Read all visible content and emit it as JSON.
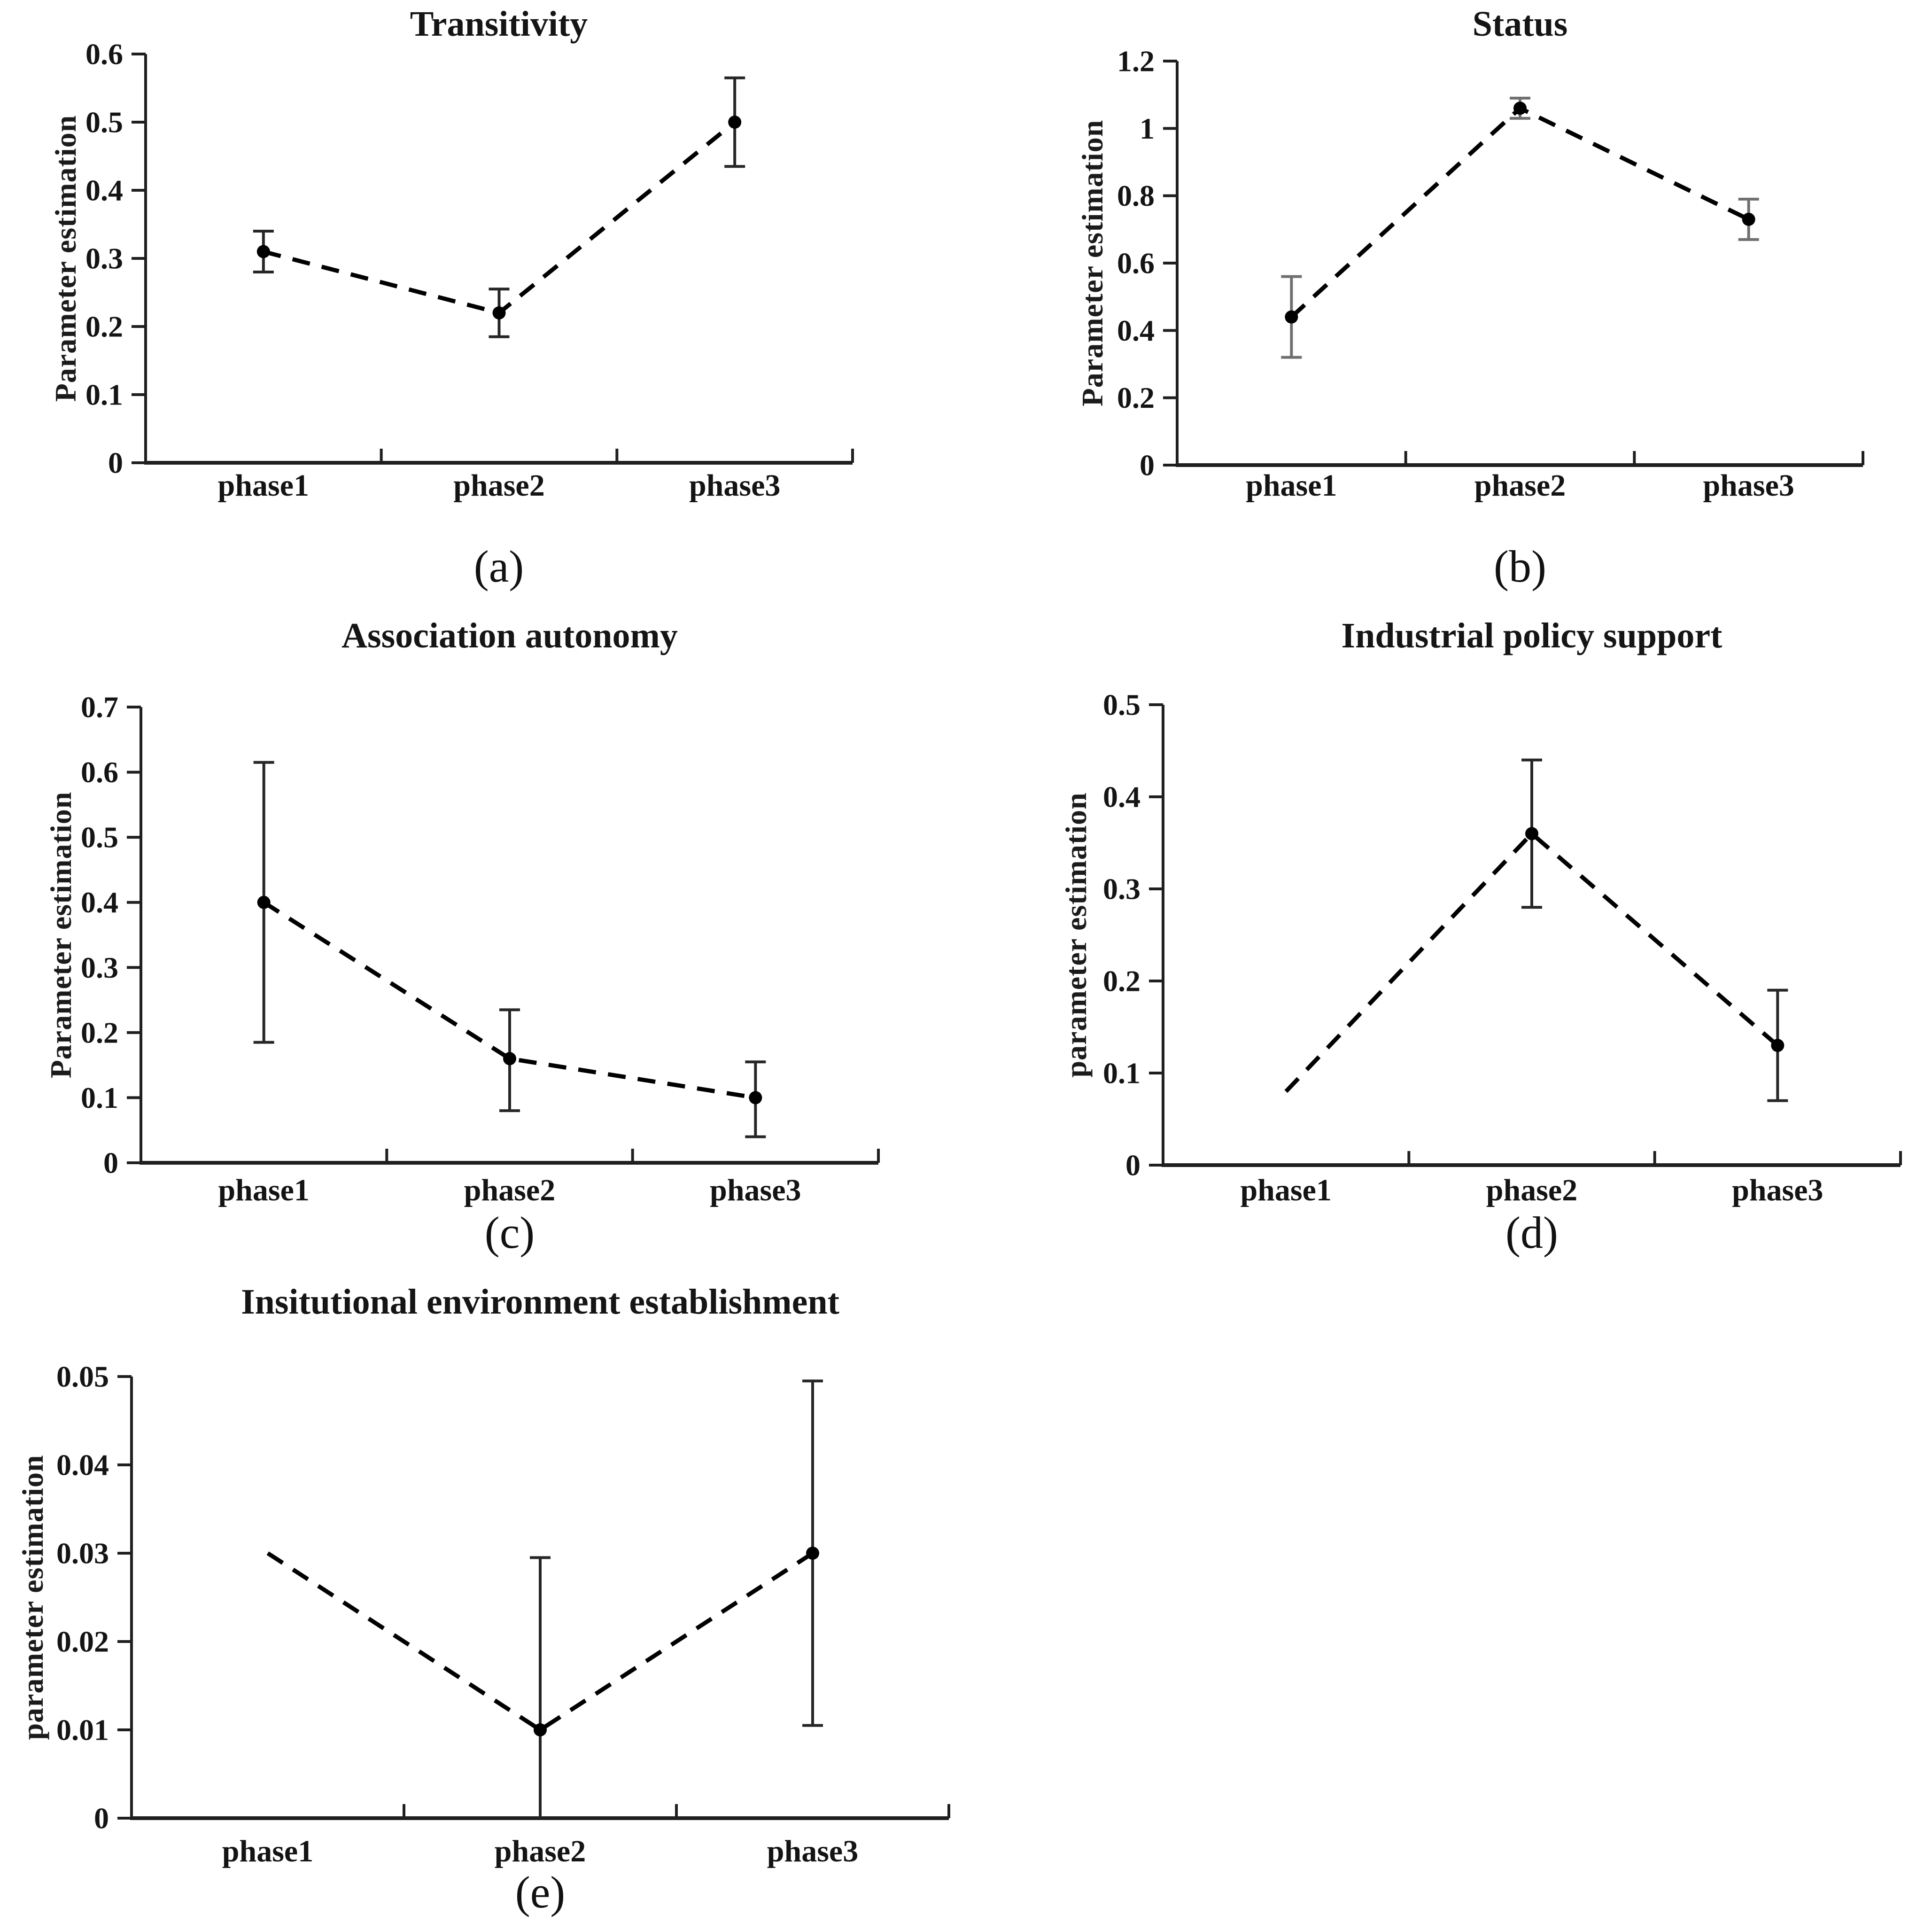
{
  "figure": {
    "background": "#ffffff",
    "ink": "#1f1f1f",
    "data_ink": "#000000"
  },
  "chart_data": [
    {
      "id": "a",
      "type": "line",
      "title": "Transitivity",
      "ylabel": "Parameter estimation",
      "caption": "(a)",
      "categories": [
        "phase1",
        "phase2",
        "phase3"
      ],
      "ylim": [
        0,
        0.6
      ],
      "yticks": [
        0,
        0.1,
        0.2,
        0.3,
        0.4,
        0.5,
        0.6
      ],
      "ytick_labels": [
        "0",
        "0.1",
        "0.2",
        "0.3",
        "0.4",
        "0.5",
        "0.6"
      ],
      "line_style": "dashed",
      "legend": "none",
      "grid": false,
      "error_color": "#262626",
      "series": [
        {
          "name": "parameter estimation",
          "values": [
            0.31,
            0.22,
            0.5
          ],
          "err_low": [
            0.28,
            0.185,
            0.435
          ],
          "err_high": [
            0.34,
            0.255,
            0.565
          ],
          "marker_shown": [
            true,
            true,
            true
          ],
          "error_shown": [
            true,
            true,
            true
          ],
          "error_cap_low": [
            true,
            true,
            true
          ]
        }
      ]
    },
    {
      "id": "b",
      "type": "line",
      "title": "Status",
      "ylabel": "Parameter estimation",
      "caption": "(b)",
      "categories": [
        "phase1",
        "phase2",
        "phase3"
      ],
      "ylim": [
        0,
        1.2
      ],
      "yticks": [
        0,
        0.2,
        0.4,
        0.6,
        0.8,
        1,
        1.2
      ],
      "ytick_labels": [
        "0",
        "0.2",
        "0.4",
        "0.6",
        "0.8",
        "1",
        "1.2"
      ],
      "line_style": "dashed",
      "legend": "none",
      "grid": false,
      "error_color": "#6f6f6f",
      "series": [
        {
          "name": "parameter estimation",
          "values": [
            0.44,
            1.06,
            0.73
          ],
          "err_low": [
            0.32,
            1.03,
            0.67
          ],
          "err_high": [
            0.56,
            1.09,
            0.79
          ],
          "marker_shown": [
            true,
            true,
            true
          ],
          "error_shown": [
            true,
            true,
            true
          ],
          "error_cap_low": [
            true,
            true,
            true
          ]
        }
      ]
    },
    {
      "id": "c",
      "type": "line",
      "title": "Association autonomy",
      "ylabel": "Parameter estimation",
      "caption": "(c)",
      "categories": [
        "phase1",
        "phase2",
        "phase3"
      ],
      "ylim": [
        0,
        0.7
      ],
      "yticks": [
        0,
        0.1,
        0.2,
        0.3,
        0.4,
        0.5,
        0.6,
        0.7
      ],
      "ytick_labels": [
        "0",
        "0.1",
        "0.2",
        "0.3",
        "0.4",
        "0.5",
        "0.6",
        "0.7"
      ],
      "line_style": "dashed",
      "legend": "none",
      "grid": false,
      "error_color": "#262626",
      "series": [
        {
          "name": "parameter estimation",
          "values": [
            0.4,
            0.16,
            0.1
          ],
          "err_low": [
            0.185,
            0.08,
            0.04
          ],
          "err_high": [
            0.615,
            0.235,
            0.155
          ],
          "marker_shown": [
            true,
            true,
            true
          ],
          "error_shown": [
            true,
            true,
            true
          ],
          "error_cap_low": [
            true,
            true,
            true
          ]
        }
      ]
    },
    {
      "id": "d",
      "type": "line",
      "title": "Industrial policy support",
      "ylabel": "parameter estimation",
      "caption": "(d)",
      "categories": [
        "phase1",
        "phase2",
        "phase3"
      ],
      "ylim": [
        0,
        0.5
      ],
      "yticks": [
        0,
        0.1,
        0.2,
        0.3,
        0.4,
        0.5
      ],
      "ytick_labels": [
        "0",
        "0.1",
        "0.2",
        "0.3",
        "0.4",
        "0.5"
      ],
      "line_style": "dashed",
      "legend": "none",
      "grid": false,
      "error_color": "#262626",
      "series": [
        {
          "name": "parameter estimation",
          "values": [
            0.08,
            0.36,
            0.13
          ],
          "err_low": [
            null,
            0.28,
            0.07
          ],
          "err_high": [
            null,
            0.44,
            0.19
          ],
          "marker_shown": [
            false,
            true,
            true
          ],
          "error_shown": [
            false,
            true,
            true
          ],
          "error_cap_low": [
            null,
            true,
            true
          ]
        }
      ]
    },
    {
      "id": "e",
      "type": "line",
      "title": "Insitutional environment establishment",
      "ylabel": "parameter estimation",
      "caption": "(e)",
      "categories": [
        "phase1",
        "phase2",
        "phase3"
      ],
      "ylim": [
        0,
        0.05
      ],
      "yticks": [
        0,
        0.01,
        0.02,
        0.03,
        0.04,
        0.05
      ],
      "ytick_labels": [
        "0",
        "0.01",
        "0.02",
        "0.03",
        "0.04",
        "0.05"
      ],
      "line_style": "dashed",
      "legend": "none",
      "grid": false,
      "error_color": "#262626",
      "series": [
        {
          "name": "parameter estimation",
          "values": [
            0.03,
            0.01,
            0.03
          ],
          "err_low": [
            null,
            0,
            0.0105
          ],
          "err_high": [
            null,
            0.0295,
            0.0495
          ],
          "marker_shown": [
            false,
            true,
            true
          ],
          "error_shown": [
            false,
            true,
            true
          ],
          "error_cap_low": [
            null,
            false,
            true
          ]
        }
      ]
    }
  ]
}
